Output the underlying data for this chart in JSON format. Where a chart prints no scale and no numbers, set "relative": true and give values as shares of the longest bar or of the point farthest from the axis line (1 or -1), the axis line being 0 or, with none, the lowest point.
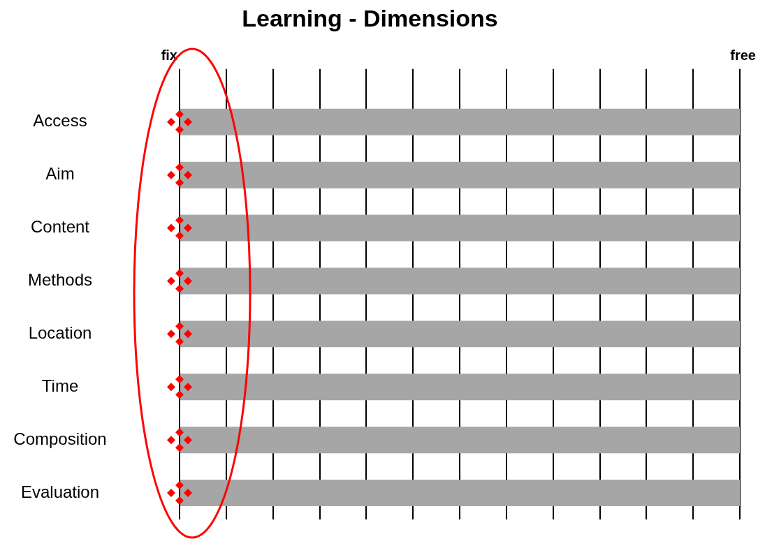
{
  "chart_data": {
    "type": "bar",
    "title": "Learning - Dimensions",
    "orientation": "horizontal",
    "relative": true,
    "categories": [
      "Access",
      "Aim",
      "Content",
      "Methods",
      "Location",
      "Time",
      "Composition",
      "Evaluation"
    ],
    "series": [
      {
        "color": "#a6a6a6",
        "values": [
          1,
          1,
          1,
          1,
          1,
          1,
          1,
          1
        ]
      }
    ],
    "annotations": [
      "fix",
      "free"
    ],
    "grid": "x"
  }
}
